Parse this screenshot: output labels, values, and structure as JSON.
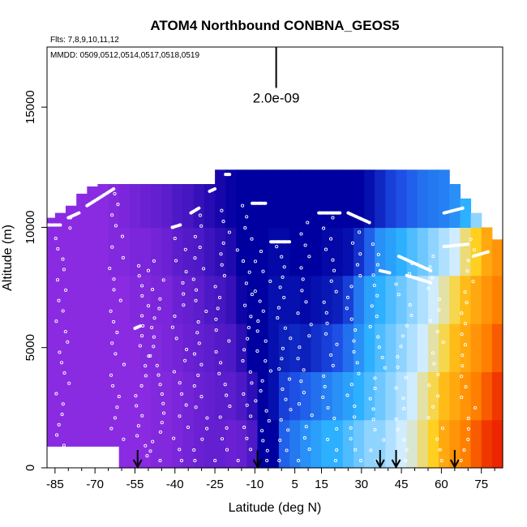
{
  "chart_data": {
    "type": "heatmap",
    "title": "ATOM4 Northbound CONBNA_GEOS5",
    "flights_label": "Flts: 7,8,9,10,11,12",
    "dates_label": "MMDD: 0509,0512,0514,0517,0518,0519",
    "xlabel": "Latitude (deg N)",
    "ylabel": "Altitude (m)",
    "xlim": [
      -88,
      83
    ],
    "ylim": [
      0,
      17500
    ],
    "x_ticks": [
      -85,
      -70,
      -55,
      -40,
      -25,
      -10,
      5,
      15,
      30,
      45,
      60,
      75
    ],
    "x_minor_step": 5,
    "y_ticks": [
      0,
      5000,
      10000,
      15000
    ],
    "scale_bar_label": "2.0e-09",
    "scale_bar_y": [
      15800,
      17500
    ],
    "scale_bar_x": -2,
    "arrow_latitudes": [
      -54,
      -9,
      37,
      43,
      65
    ],
    "colors": {
      "purple": "#8a2be2",
      "blue_dark": "#0000a0",
      "blue": "#1e50e6",
      "cyan": "#2db0ff",
      "light": "#d0ecff",
      "yellow": "#ffd020",
      "orange": "#ff8000",
      "red": "#e60000"
    },
    "columns": [
      {
        "lat": -87,
        "top": 10400,
        "v": [
          0.12,
          0.12,
          0.12,
          0.12,
          0.12,
          0.12
        ]
      },
      {
        "lat": -83,
        "top": 10600,
        "v": [
          0.12,
          0.12,
          0.12,
          0.12,
          0.12,
          0.12
        ]
      },
      {
        "lat": -79,
        "top": 10900,
        "v": [
          0.12,
          0.12,
          0.12,
          0.12,
          0.12,
          0.12
        ]
      },
      {
        "lat": -75,
        "top": 11400,
        "v": [
          0.12,
          0.12,
          0.12,
          0.12,
          0.12,
          0.12
        ]
      },
      {
        "lat": -71,
        "top": 11700,
        "v": [
          0.12,
          0.12,
          0.12,
          0.12,
          0.12,
          0.12
        ]
      },
      {
        "lat": -67,
        "top": 11800,
        "v": [
          0.12,
          0.12,
          0.12,
          0.12,
          0.12,
          0.12
        ]
      },
      {
        "lat": -63,
        "top": 11800,
        "v": [
          0.12,
          0.12,
          0.12,
          0.12,
          0.13,
          0.13
        ]
      },
      {
        "lat": -59,
        "top": 11800,
        "v": [
          0.12,
          0.12,
          0.12,
          0.12,
          0.13,
          0.14
        ]
      },
      {
        "lat": -55,
        "top": 11800,
        "v": [
          0.12,
          0.12,
          0.12,
          0.13,
          0.14,
          0.15
        ]
      },
      {
        "lat": -51,
        "top": 11800,
        "v": [
          0.12,
          0.12,
          0.13,
          0.13,
          0.14,
          0.16
        ]
      },
      {
        "lat": -47,
        "top": 11800,
        "v": [
          0.13,
          0.13,
          0.13,
          0.14,
          0.15,
          0.17
        ]
      },
      {
        "lat": -43,
        "top": 11800,
        "v": [
          0.13,
          0.13,
          0.14,
          0.14,
          0.16,
          0.18
        ]
      },
      {
        "lat": -39,
        "top": 11800,
        "v": [
          0.14,
          0.14,
          0.15,
          0.16,
          0.18,
          0.2
        ]
      },
      {
        "lat": -35,
        "top": 11800,
        "v": [
          0.15,
          0.15,
          0.16,
          0.17,
          0.19,
          0.21
        ]
      },
      {
        "lat": -31,
        "top": 11800,
        "v": [
          0.16,
          0.16,
          0.17,
          0.18,
          0.2,
          0.23
        ]
      },
      {
        "lat": -27,
        "top": 11800,
        "v": [
          0.17,
          0.17,
          0.18,
          0.2,
          0.22,
          0.25
        ]
      },
      {
        "lat": -23,
        "top": 12400,
        "v": [
          0.17,
          0.18,
          0.19,
          0.21,
          0.24,
          0.27
        ]
      },
      {
        "lat": -19,
        "top": 12400,
        "v": [
          0.16,
          0.18,
          0.2,
          0.23,
          0.26,
          0.29
        ]
      },
      {
        "lat": -15,
        "top": 12400,
        "v": [
          0.17,
          0.2,
          0.24,
          0.28,
          0.3,
          0.32
        ]
      },
      {
        "lat": -11,
        "top": 12400,
        "v": [
          0.2,
          0.24,
          0.3,
          0.34,
          0.36,
          0.37
        ]
      },
      {
        "lat": -7,
        "top": 12400,
        "v": [
          0.3,
          0.34,
          0.38,
          0.4,
          0.4,
          0.39
        ]
      },
      {
        "lat": -3,
        "top": 12400,
        "v": [
          0.4,
          0.42,
          0.42,
          0.42,
          0.41,
          0.4
        ]
      },
      {
        "lat": 1,
        "top": 12400,
        "v": [
          0.52,
          0.48,
          0.44,
          0.42,
          0.41,
          0.4
        ]
      },
      {
        "lat": 5,
        "top": 12400,
        "v": [
          0.55,
          0.5,
          0.45,
          0.42,
          0.4,
          0.39
        ]
      },
      {
        "lat": 9,
        "top": 12400,
        "v": [
          0.58,
          0.52,
          0.44,
          0.41,
          0.4,
          0.39
        ]
      },
      {
        "lat": 13,
        "top": 12400,
        "v": [
          0.6,
          0.54,
          0.46,
          0.42,
          0.4,
          0.39
        ]
      },
      {
        "lat": 17,
        "top": 12400,
        "v": [
          0.62,
          0.56,
          0.48,
          0.43,
          0.41,
          0.39
        ]
      },
      {
        "lat": 21,
        "top": 12400,
        "v": [
          0.62,
          0.58,
          0.5,
          0.44,
          0.41,
          0.39
        ]
      },
      {
        "lat": 25,
        "top": 12400,
        "v": [
          0.64,
          0.6,
          0.54,
          0.48,
          0.42,
          0.39
        ]
      },
      {
        "lat": 29,
        "top": 12400,
        "v": [
          0.66,
          0.62,
          0.58,
          0.55,
          0.46,
          0.4
        ]
      },
      {
        "lat": 33,
        "top": 12400,
        "v": [
          0.68,
          0.64,
          0.62,
          0.6,
          0.52,
          0.42
        ]
      },
      {
        "lat": 37,
        "top": 12400,
        "v": [
          0.68,
          0.66,
          0.64,
          0.62,
          0.58,
          0.45
        ]
      },
      {
        "lat": 41,
        "top": 12400,
        "v": [
          0.7,
          0.68,
          0.66,
          0.64,
          0.6,
          0.48
        ]
      },
      {
        "lat": 45,
        "top": 12400,
        "v": [
          0.72,
          0.7,
          0.68,
          0.66,
          0.62,
          0.5
        ]
      },
      {
        "lat": 49,
        "top": 12400,
        "v": [
          0.74,
          0.72,
          0.7,
          0.68,
          0.64,
          0.52
        ]
      },
      {
        "lat": 53,
        "top": 12400,
        "v": [
          0.78,
          0.76,
          0.72,
          0.7,
          0.66,
          0.54
        ]
      },
      {
        "lat": 57,
        "top": 12400,
        "v": [
          0.82,
          0.8,
          0.76,
          0.72,
          0.68,
          0.55
        ]
      },
      {
        "lat": 61,
        "top": 12400,
        "v": [
          0.86,
          0.84,
          0.8,
          0.76,
          0.7,
          0.56
        ]
      },
      {
        "lat": 65,
        "top": 11800,
        "v": [
          0.88,
          0.86,
          0.84,
          0.8,
          0.72,
          0.58
        ]
      },
      {
        "lat": 69,
        "top": 11200,
        "v": [
          0.9,
          0.88,
          0.86,
          0.84,
          0.78,
          0.62
        ]
      },
      {
        "lat": 73,
        "top": 10600,
        "v": [
          0.92,
          0.9,
          0.88,
          0.86,
          0.82,
          0.68
        ]
      },
      {
        "lat": 77,
        "top": 10000,
        "v": [
          0.94,
          0.92,
          0.9,
          0.88,
          0.86,
          0.8
        ]
      },
      {
        "lat": 81,
        "top": 9500,
        "v": [
          0.95,
          0.94,
          0.92,
          0.9,
          0.88,
          0.85
        ]
      }
    ],
    "dive_dots": [
      {
        "lat": -82,
        "alt_min": 500,
        "alt_max": 10400,
        "n": 24
      },
      {
        "lat": -62,
        "alt_min": 300,
        "alt_max": 11400,
        "n": 26
      },
      {
        "lat": -52,
        "alt_min": 500,
        "alt_max": 8400,
        "n": 20
      },
      {
        "lat": -47,
        "alt_min": 300,
        "alt_max": 8600,
        "n": 22
      },
      {
        "lat": -38,
        "alt_min": 300,
        "alt_max": 10000,
        "n": 22
      },
      {
        "lat": -30,
        "alt_min": 300,
        "alt_max": 10500,
        "n": 24
      },
      {
        "lat": -22,
        "alt_min": 300,
        "alt_max": 10700,
        "n": 24
      },
      {
        "lat": -14,
        "alt_min": 300,
        "alt_max": 10900,
        "n": 24
      },
      {
        "lat": -7,
        "alt_min": 300,
        "alt_max": 9000,
        "n": 22
      },
      {
        "lat": 1,
        "alt_min": 300,
        "alt_max": 9200,
        "n": 22
      },
      {
        "lat": 9,
        "alt_min": 300,
        "alt_max": 10200,
        "n": 22
      },
      {
        "lat": 18,
        "alt_min": 300,
        "alt_max": 10400,
        "n": 24
      },
      {
        "lat": 27,
        "alt_min": 300,
        "alt_max": 9800,
        "n": 22
      },
      {
        "lat": 36,
        "alt_min": 300,
        "alt_max": 9300,
        "n": 22
      },
      {
        "lat": 46,
        "alt_min": 300,
        "alt_max": 8500,
        "n": 20
      },
      {
        "lat": 58,
        "alt_min": 300,
        "alt_max": 8800,
        "n": 20
      },
      {
        "lat": 70,
        "alt_min": 300,
        "alt_max": 9500,
        "n": 22
      }
    ],
    "flight_legs": [
      {
        "x1": -88,
        "y1": 10100,
        "x2": -83,
        "y2": 10100
      },
      {
        "x1": -80,
        "y1": 10400,
        "x2": -76,
        "y2": 10600
      },
      {
        "x1": -73,
        "y1": 10900,
        "x2": -63,
        "y2": 11600
      },
      {
        "x1": -55,
        "y1": 5800,
        "x2": -53,
        "y2": 5900
      },
      {
        "x1": -41,
        "y1": 10000,
        "x2": -38,
        "y2": 10100
      },
      {
        "x1": -34,
        "y1": 10600,
        "x2": -31,
        "y2": 10800
      },
      {
        "x1": -27,
        "y1": 11500,
        "x2": -25,
        "y2": 11600
      },
      {
        "x1": -21,
        "y1": 12200,
        "x2": -19,
        "y2": 12200
      },
      {
        "x1": -11,
        "y1": 11000,
        "x2": -6,
        "y2": 11000
      },
      {
        "x1": -4,
        "y1": 9400,
        "x2": 3,
        "y2": 9400
      },
      {
        "x1": 14,
        "y1": 10600,
        "x2": 22,
        "y2": 10600
      },
      {
        "x1": 25,
        "y1": 10600,
        "x2": 33,
        "y2": 10200
      },
      {
        "x1": 44,
        "y1": 8800,
        "x2": 56,
        "y2": 8200
      },
      {
        "x1": 37,
        "y1": 8200,
        "x2": 41,
        "y2": 8100
      },
      {
        "x1": 47,
        "y1": 8000,
        "x2": 56,
        "y2": 7700
      },
      {
        "x1": 61,
        "y1": 10600,
        "x2": 68,
        "y2": 10800
      },
      {
        "x1": 61,
        "y1": 9200,
        "x2": 70,
        "y2": 9300
      },
      {
        "x1": 72,
        "y1": 8800,
        "x2": 78,
        "y2": 9000
      }
    ]
  }
}
